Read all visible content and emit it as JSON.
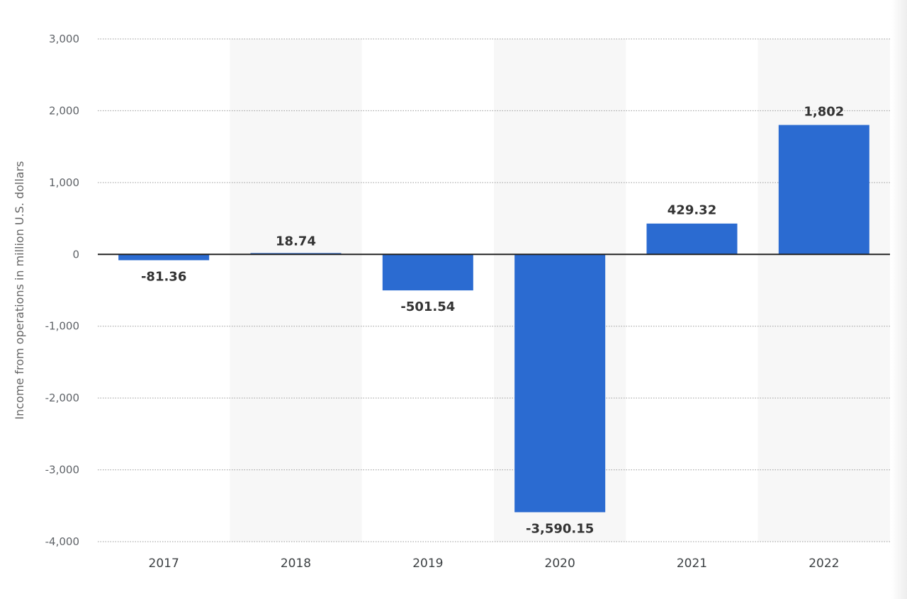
{
  "chart_data": {
    "type": "bar",
    "categories": [
      "2017",
      "2018",
      "2019",
      "2020",
      "2021",
      "2022"
    ],
    "values": [
      -81.36,
      18.74,
      -501.54,
      -3590.15,
      429.32,
      1802
    ],
    "value_labels": [
      "-81.36",
      "18.74",
      "-501.54",
      "-3,590.15",
      "429.32",
      "1,802"
    ],
    "title": "",
    "xlabel": "",
    "ylabel": "Income from operations in million U.S. dollars",
    "ylim": [
      -4000,
      3000
    ],
    "yticks": [
      3000,
      2000,
      1000,
      0,
      -1000,
      -2000,
      -3000,
      -4000
    ],
    "ytick_labels": [
      "3,000",
      "2,000",
      "1,000",
      "0",
      "-1,000",
      "-2,000",
      "-3,000",
      "-4,000"
    ],
    "grid": true,
    "alternating_column_bands": true,
    "legend": "none",
    "colors": {
      "bar": "#2b6bd1",
      "band": "#f7f7f7",
      "grid": "#9a9a9a",
      "zero_line": "#222222"
    }
  }
}
